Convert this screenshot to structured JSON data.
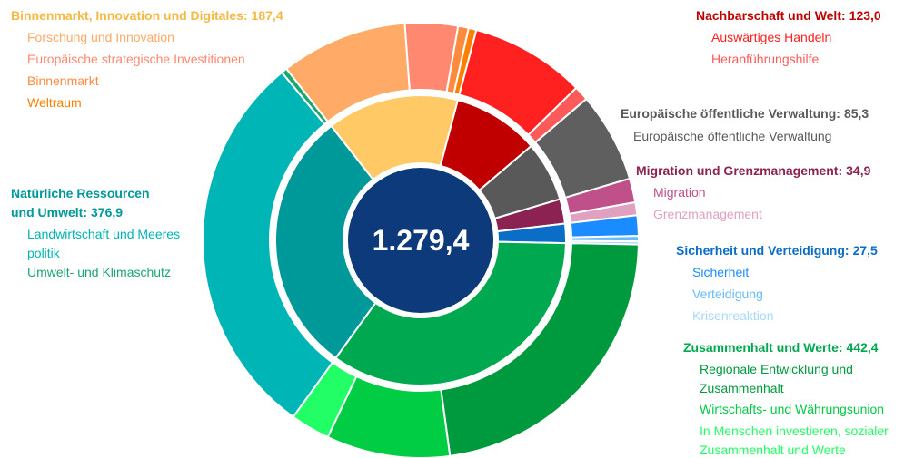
{
  "chart_data": {
    "type": "sunburst",
    "total": 1279.4,
    "total_label": "1.279,4",
    "groups": [
      {
        "name": "Binnenmarkt, Innovation und Digitales:",
        "value": 187.4,
        "value_label": "187,4",
        "color": "#ffc966",
        "label_color": "#f5b945",
        "children": [
          {
            "name": "Forschung und Innovation",
            "value": 120.0,
            "color": "#ffaa66"
          },
          {
            "name": "Europäische strategische Investitionen",
            "value": 50.0,
            "color": "#ff8870"
          },
          {
            "name": "Binnenmarkt",
            "value": 10.0,
            "color": "#ff8a3d"
          },
          {
            "name": "Weltraum",
            "value": 7.4,
            "color": "#ff7f00"
          }
        ]
      },
      {
        "name": "Nachbarschaft und Welt:",
        "value": 123.0,
        "value_label": "123,0",
        "color": "#c00000",
        "label_color": "#c00000",
        "children": [
          {
            "name": "Auswärtiges Handeln",
            "value": 109.0,
            "color": "#ff2020"
          },
          {
            "name": "Heranführungshilfe",
            "value": 14.0,
            "color": "#ff5a5a"
          }
        ]
      },
      {
        "name": "Europäische öffentliche Verwaltung:",
        "value": 85.3,
        "value_label": "85,3",
        "color": "#595959",
        "label_color": "#595959",
        "children": [
          {
            "name": "Europäische öffentliche Verwaltung",
            "value": 85.3,
            "color": "#5f5f5f"
          }
        ]
      },
      {
        "name": "Migration und Grenzmanagement:",
        "value": 34.9,
        "value_label": "34,9",
        "color": "#8b2252",
        "label_color": "#8b2252",
        "children": [
          {
            "name": "Migration",
            "value": 22.7,
            "color": "#c0508a"
          },
          {
            "name": "Grenzmanagement",
            "value": 12.2,
            "color": "#e0a0c0"
          }
        ]
      },
      {
        "name": "Sicherheit und Verteidigung:",
        "value": 27.5,
        "value_label": "27,5",
        "color": "#0a6ec8",
        "label_color": "#0a6ec8",
        "children": [
          {
            "name": "Sicherheit",
            "value": 19.5,
            "color": "#1a8cff"
          },
          {
            "name": "Verteidigung",
            "value": 5.0,
            "color": "#66bbff"
          },
          {
            "name": "Krisenreaktion",
            "value": 3.0,
            "color": "#a8d8ff"
          }
        ]
      },
      {
        "name": "Zusammenhalt und Werte:",
        "value": 442.4,
        "value_label": "442,4",
        "color": "#00a84f",
        "label_color": "#00a84f",
        "children": [
          {
            "name": [
              "Regionale Entwicklung und",
              "Zusammenhalt"
            ],
            "value": 288.0,
            "color": "#009a3e"
          },
          {
            "name": "Wirtschafts- und Währungsunion",
            "value": 117.0,
            "color": "#00cc44"
          },
          {
            "name": [
              "In Menschen investieren, sozialer",
              "Zusammenhalt und Werte"
            ],
            "value": 37.4,
            "color": "#22ff66"
          }
        ]
      },
      {
        "name": [
          "Natürliche Ressourcen",
          "und Umwelt:"
        ],
        "value": 376.9,
        "value_label": "376,9",
        "color": "#00999a",
        "label_color": "#009999",
        "children": [
          {
            "name": [
              "Landwirtschaft und Meeres",
              "politik"
            ],
            "value": 371.5,
            "color": "#00b5b5"
          },
          {
            "name": "Umwelt- und Klimaschutz",
            "value": 5.4,
            "color": "#1aa870"
          }
        ]
      }
    ]
  }
}
